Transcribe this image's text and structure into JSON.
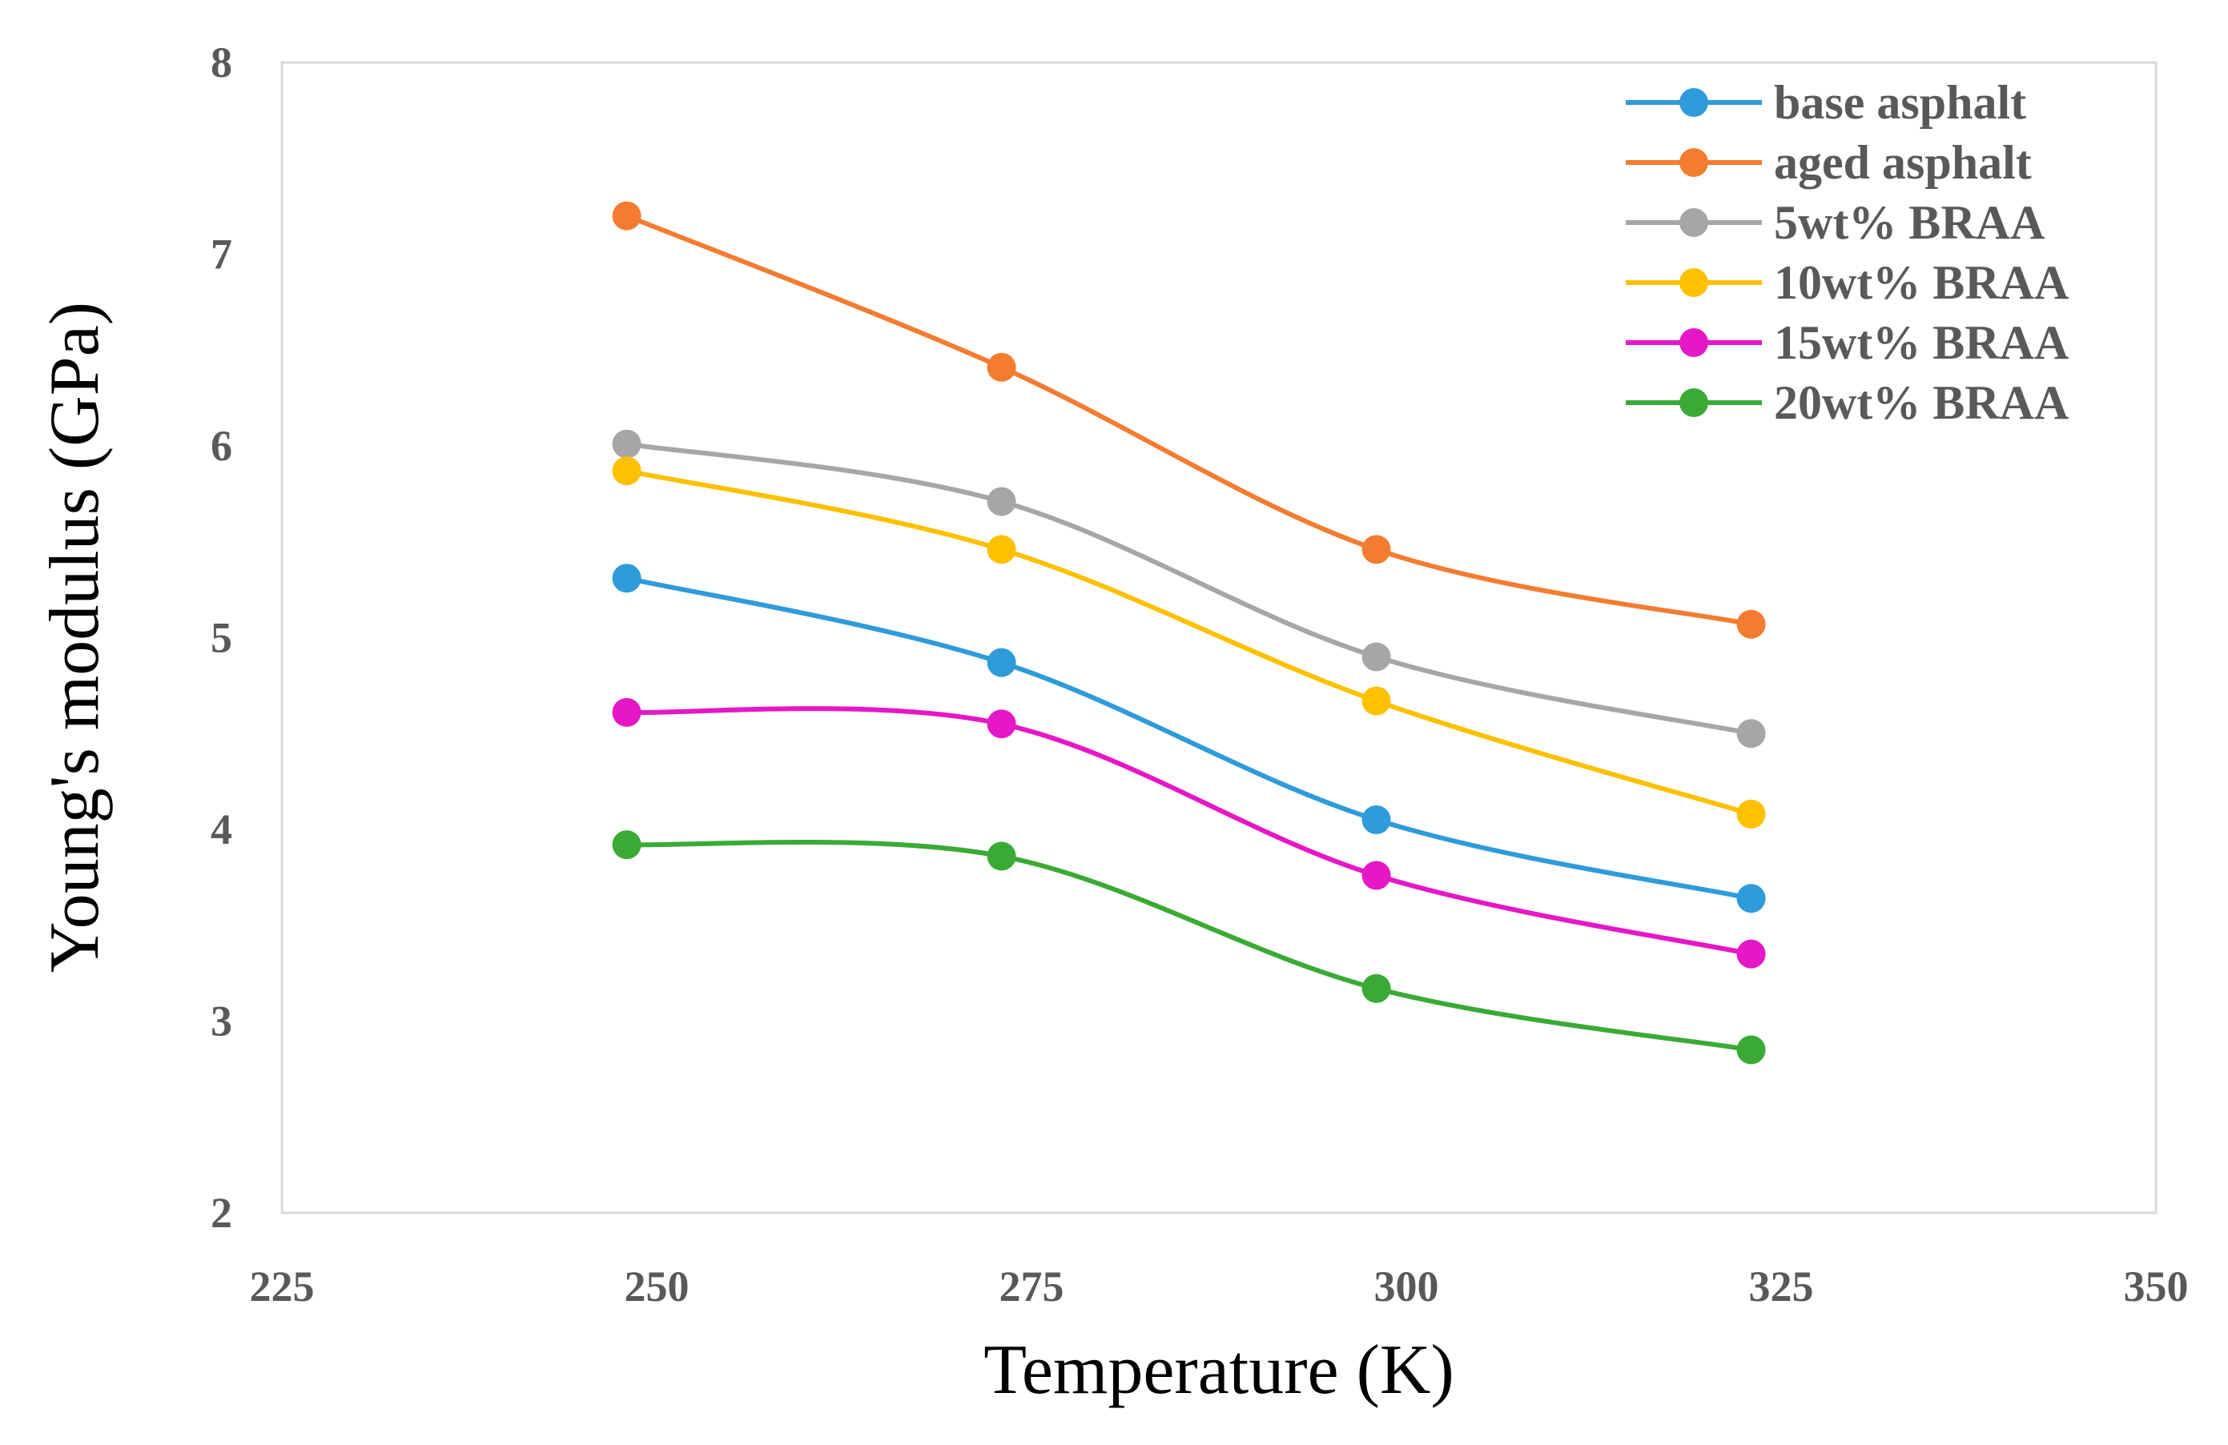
{
  "chart_data": {
    "type": "line",
    "title": "",
    "xlabel": "Temperature (K)",
    "ylabel": "Young's modulus (GPa)",
    "xlim": [
      225,
      350
    ],
    "ylim": [
      2,
      8
    ],
    "xticks": [
      225,
      250,
      275,
      300,
      325,
      350
    ],
    "yticks": [
      2,
      3,
      4,
      5,
      6,
      7,
      8
    ],
    "grid": false,
    "legend_position": "top-right",
    "x": [
      248,
      273,
      298,
      323
    ],
    "series": [
      {
        "name": "base asphalt",
        "color": "#2E9BDA",
        "values": [
          5.31,
          4.87,
          4.05,
          3.64
        ]
      },
      {
        "name": "aged asphalt",
        "color": "#F47C30",
        "values": [
          7.2,
          6.41,
          5.46,
          5.07
        ]
      },
      {
        "name": "5wt% BRAA",
        "color": "#A6A6A6",
        "values": [
          6.01,
          5.71,
          4.9,
          4.5
        ]
      },
      {
        "name": "10wt% BRAA",
        "color": "#FFC000",
        "values": [
          5.87,
          5.46,
          4.67,
          4.08
        ]
      },
      {
        "name": "15wt% BRAA",
        "color": "#E617C6",
        "values": [
          4.61,
          4.55,
          3.76,
          3.35
        ]
      },
      {
        "name": "20wt% BRAA",
        "color": "#3AAA35",
        "values": [
          3.92,
          3.86,
          3.17,
          2.85
        ]
      }
    ]
  }
}
